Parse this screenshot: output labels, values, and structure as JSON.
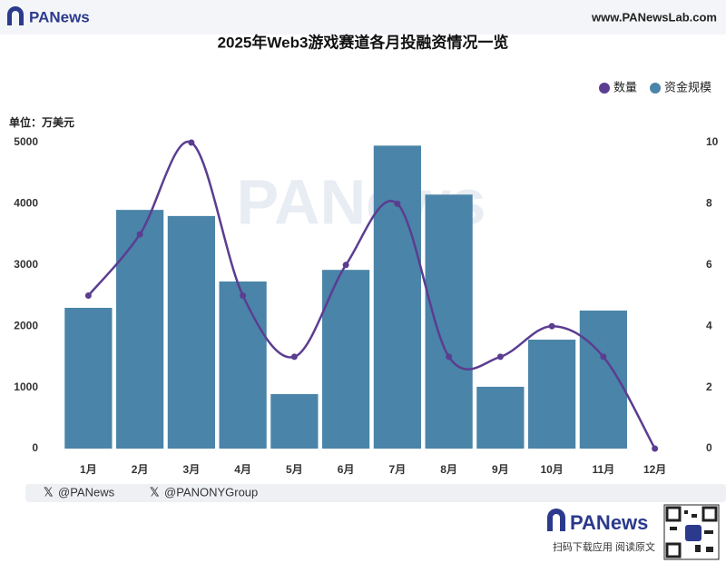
{
  "header": {
    "logo": "PANews",
    "url": "www.PANewsLab.com"
  },
  "chart_data": {
    "type": "combo",
    "title": "2025年Web3游戏赛道各月投融资情况一览",
    "y_label": "单位：万美元",
    "watermark": "PANews",
    "categories": [
      "1月",
      "2月",
      "3月",
      "4月",
      "5月",
      "6月",
      "7月",
      "8月",
      "9月",
      "10月",
      "11月",
      "12月"
    ],
    "series": [
      {
        "name": "数量",
        "type": "line",
        "axis": "y2",
        "color": "#5b3d91",
        "values": [
          5,
          7,
          10,
          5,
          3,
          6,
          8,
          3,
          3,
          4,
          3,
          0
        ]
      },
      {
        "name": "资金规模",
        "type": "bar",
        "color": "#4a84a8",
        "values": [
          2300,
          3900,
          3800,
          2730,
          890,
          2920,
          4950,
          4150,
          1010,
          1780,
          2255,
          0
        ]
      }
    ],
    "ylim": [
      0,
      5000
    ],
    "yticks": [
      0,
      1000,
      2000,
      3000,
      4000,
      5000
    ],
    "y2lim": [
      0,
      10
    ],
    "y2ticks": [
      0,
      2,
      4,
      6,
      8,
      10
    ],
    "grid": false,
    "legend": "top-right"
  },
  "footer": {
    "handles": [
      "@PANews",
      "@PANONYGroup"
    ],
    "logo": "PANews",
    "caption": "扫码下载应用  阅读原文"
  }
}
